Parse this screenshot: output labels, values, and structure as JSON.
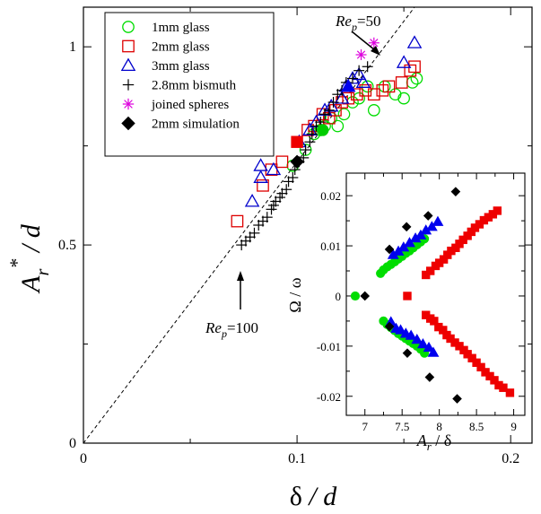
{
  "chart_data": [
    {
      "type": "scatter",
      "xlabel": "δ / d",
      "ylabel": "A_r* / d",
      "xlim": [
        0,
        0.21
      ],
      "ylim": [
        0,
        1.1
      ],
      "x_ticks": [
        0,
        0.1,
        0.2
      ],
      "x_tick_labels": [
        "0",
        "0.1",
        "0.2"
      ],
      "y_ticks": [
        0,
        0.5,
        1
      ],
      "y_tick_labels": [
        "0",
        "0.5",
        "1"
      ],
      "grid": false,
      "legend_position": "top-left",
      "legend": [
        "1mm glass",
        "2mm glass",
        "3mm glass",
        "2.8mm bismuth",
        "joined spheres",
        "2mm simulation"
      ],
      "reference_line": {
        "style": "dashed",
        "x": [
          0,
          0.155
        ],
        "y": [
          0,
          1.1
        ]
      },
      "annotations": [
        {
          "text_main": "Re",
          "text_sub": "p",
          "text_rest": "=50",
          "point": [
            0.131,
            0.98
          ]
        },
        {
          "text_main": "Re",
          "text_sub": "p",
          "text_rest": "=100",
          "point": [
            0.072,
            0.5
          ]
        }
      ],
      "series": [
        {
          "name": "1mm glass",
          "marker": "circle-open",
          "color": "#00dd00",
          "points": [
            [
              0.098,
              0.7
            ],
            [
              0.104,
              0.74
            ],
            [
              0.108,
              0.78
            ],
            [
              0.111,
              0.79
            ],
            [
              0.113,
              0.8
            ],
            [
              0.116,
              0.82
            ],
            [
              0.119,
              0.8
            ],
            [
              0.122,
              0.83
            ],
            [
              0.126,
              0.86
            ],
            [
              0.129,
              0.87
            ],
            [
              0.133,
              0.9
            ],
            [
              0.136,
              0.84
            ],
            [
              0.141,
              0.9
            ],
            [
              0.146,
              0.88
            ],
            [
              0.15,
              0.87
            ],
            [
              0.154,
              0.91
            ],
            [
              0.156,
              0.92
            ]
          ]
        },
        {
          "name": "2mm glass",
          "marker": "square-open",
          "color": "#dd0000",
          "points": [
            [
              0.072,
              0.56
            ],
            [
              0.084,
              0.65
            ],
            [
              0.088,
              0.69
            ],
            [
              0.093,
              0.71
            ],
            [
              0.105,
              0.79
            ],
            [
              0.108,
              0.8
            ],
            [
              0.112,
              0.83
            ],
            [
              0.115,
              0.82
            ],
            [
              0.118,
              0.84
            ],
            [
              0.121,
              0.86
            ],
            [
              0.124,
              0.87
            ],
            [
              0.128,
              0.88
            ],
            [
              0.132,
              0.89
            ],
            [
              0.136,
              0.88
            ],
            [
              0.14,
              0.89
            ],
            [
              0.143,
              0.9
            ],
            [
              0.149,
              0.91
            ],
            [
              0.153,
              0.94
            ],
            [
              0.155,
              0.95
            ]
          ]
        },
        {
          "name": "3mm glass",
          "marker": "triangle-open",
          "color": "#0000cc",
          "points": [
            [
              0.079,
              0.61
            ],
            [
              0.083,
              0.67
            ],
            [
              0.083,
              0.7
            ],
            [
              0.089,
              0.69
            ],
            [
              0.101,
              0.76
            ],
            [
              0.106,
              0.79
            ],
            [
              0.109,
              0.81
            ],
            [
              0.113,
              0.84
            ],
            [
              0.116,
              0.85
            ],
            [
              0.121,
              0.87
            ],
            [
              0.123,
              0.9
            ],
            [
              0.126,
              0.92
            ],
            [
              0.129,
              0.93
            ],
            [
              0.131,
              0.91
            ],
            [
              0.15,
              0.96
            ],
            [
              0.155,
              1.01
            ]
          ]
        },
        {
          "name": "2.8mm bismuth",
          "marker": "plus",
          "color": "#000000",
          "points": [
            [
              0.074,
              0.5
            ],
            [
              0.076,
              0.51
            ],
            [
              0.078,
              0.52
            ],
            [
              0.08,
              0.53
            ],
            [
              0.082,
              0.55
            ],
            [
              0.084,
              0.56
            ],
            [
              0.086,
              0.57
            ],
            [
              0.088,
              0.59
            ],
            [
              0.089,
              0.6
            ],
            [
              0.09,
              0.61
            ],
            [
              0.092,
              0.62
            ],
            [
              0.093,
              0.63
            ],
            [
              0.095,
              0.64
            ],
            [
              0.096,
              0.66
            ],
            [
              0.098,
              0.67
            ],
            [
              0.099,
              0.69
            ],
            [
              0.101,
              0.71
            ],
            [
              0.103,
              0.72
            ],
            [
              0.104,
              0.74
            ],
            [
              0.106,
              0.76
            ],
            [
              0.107,
              0.78
            ],
            [
              0.109,
              0.8
            ],
            [
              0.111,
              0.81
            ],
            [
              0.113,
              0.83
            ],
            [
              0.115,
              0.84
            ],
            [
              0.117,
              0.86
            ],
            [
              0.119,
              0.88
            ],
            [
              0.121,
              0.89
            ],
            [
              0.123,
              0.91
            ],
            [
              0.126,
              0.92
            ],
            [
              0.129,
              0.94
            ],
            [
              0.133,
              0.95
            ]
          ]
        },
        {
          "name": "joined spheres",
          "marker": "asterisk",
          "color": "#dd00dd",
          "points": [
            [
              0.13,
              0.98
            ],
            [
              0.136,
              1.01
            ]
          ]
        },
        {
          "name": "2mm simulation",
          "marker": "diamond-filled",
          "color": "#000000",
          "points": [
            [
              0.1,
              0.71
            ]
          ]
        },
        {
          "name": "",
          "marker": "square-filled",
          "color": "#ee0000",
          "points": [
            [
              0.1,
              0.76
            ]
          ]
        },
        {
          "name": "",
          "marker": "circle-filled",
          "color": "#00cc00",
          "points": [
            [
              0.112,
              0.79
            ]
          ]
        },
        {
          "name": "",
          "marker": "triangle-filled",
          "color": "#0000ee",
          "points": [
            [
              0.124,
              0.9
            ]
          ]
        }
      ]
    },
    {
      "type": "scatter",
      "inset": true,
      "xlabel": "A_r / δ",
      "ylabel": "Ω / ω",
      "xlim": [
        6.75,
        9.15
      ],
      "ylim": [
        -0.0238,
        0.0245
      ],
      "x_ticks": [
        7,
        7.5,
        8,
        8.5,
        9
      ],
      "x_tick_labels": [
        "7",
        "7.5",
        "8",
        "8.5",
        "9"
      ],
      "y_ticks": [
        0.02,
        0.01,
        0,
        -0.01,
        -0.02
      ],
      "y_tick_labels": [
        "0.02",
        "0.01",
        "0",
        "-0.01",
        "-0.02"
      ],
      "grid": false,
      "series": [
        {
          "marker": "circle-filled",
          "color": "#00dd00",
          "points": [
            [
              6.87,
              0.0
            ],
            [
              7.21,
              0.0045
            ],
            [
              7.25,
              0.0052
            ],
            [
              7.3,
              0.0058
            ],
            [
              7.35,
              0.0063
            ],
            [
              7.4,
              0.0068
            ],
            [
              7.45,
              0.0074
            ],
            [
              7.5,
              0.0079
            ],
            [
              7.55,
              0.0085
            ],
            [
              7.6,
              0.009
            ],
            [
              7.65,
              0.0096
            ],
            [
              7.7,
              0.0102
            ],
            [
              7.75,
              0.0108
            ],
            [
              7.8,
              0.0114
            ],
            [
              7.25,
              -0.005
            ],
            [
              7.3,
              -0.0057
            ],
            [
              7.35,
              -0.0063
            ],
            [
              7.4,
              -0.0069
            ],
            [
              7.45,
              -0.0075
            ],
            [
              7.5,
              -0.008
            ],
            [
              7.55,
              -0.0085
            ],
            [
              7.6,
              -0.009
            ],
            [
              7.65,
              -0.0095
            ],
            [
              7.7,
              -0.01
            ],
            [
              7.75,
              -0.0106
            ],
            [
              7.8,
              -0.0114
            ]
          ]
        },
        {
          "marker": "square-filled",
          "color": "#ee0000",
          "points": [
            [
              7.57,
              0.0
            ],
            [
              7.82,
              0.0042
            ],
            [
              7.88,
              0.005
            ],
            [
              7.95,
              0.006
            ],
            [
              8.0,
              0.0066
            ],
            [
              8.06,
              0.0073
            ],
            [
              8.11,
              0.0082
            ],
            [
              8.16,
              0.009
            ],
            [
              8.22,
              0.0096
            ],
            [
              8.27,
              0.0104
            ],
            [
              8.32,
              0.0112
            ],
            [
              8.38,
              0.012
            ],
            [
              8.43,
              0.0128
            ],
            [
              8.48,
              0.0136
            ],
            [
              8.54,
              0.0143
            ],
            [
              8.6,
              0.0151
            ],
            [
              8.66,
              0.0157
            ],
            [
              8.72,
              0.0163
            ],
            [
              8.78,
              0.017
            ],
            [
              7.82,
              -0.0038
            ],
            [
              7.88,
              -0.0045
            ],
            [
              7.93,
              -0.005
            ],
            [
              7.99,
              -0.0062
            ],
            [
              8.05,
              -0.0068
            ],
            [
              8.1,
              -0.0078
            ],
            [
              8.15,
              -0.0085
            ],
            [
              8.21,
              -0.0093
            ],
            [
              8.27,
              -0.01
            ],
            [
              8.33,
              -0.0108
            ],
            [
              8.38,
              -0.0116
            ],
            [
              8.44,
              -0.0124
            ],
            [
              8.5,
              -0.0133
            ],
            [
              8.56,
              -0.0142
            ],
            [
              8.62,
              -0.0152
            ],
            [
              8.68,
              -0.016
            ],
            [
              8.74,
              -0.0168
            ],
            [
              8.8,
              -0.0178
            ],
            [
              8.86,
              -0.0183
            ],
            [
              8.95,
              -0.0193
            ]
          ]
        },
        {
          "marker": "triangle-filled",
          "color": "#0000ee",
          "points": [
            [
              7.38,
              0.0082
            ],
            [
              7.45,
              0.0089
            ],
            [
              7.52,
              0.0097
            ],
            [
              7.6,
              0.0106
            ],
            [
              7.68,
              0.0115
            ],
            [
              7.75,
              0.0121
            ],
            [
              7.82,
              0.0131
            ],
            [
              7.9,
              0.0138
            ],
            [
              7.98,
              0.0148
            ],
            [
              7.35,
              -0.0052
            ],
            [
              7.42,
              -0.0065
            ],
            [
              7.48,
              -0.0068
            ],
            [
              7.55,
              -0.0075
            ],
            [
              7.62,
              -0.0079
            ],
            [
              7.7,
              -0.0087
            ],
            [
              7.78,
              -0.0096
            ],
            [
              7.86,
              -0.0103
            ],
            [
              7.92,
              -0.0113
            ]
          ]
        },
        {
          "marker": "diamond-filled",
          "color": "#000000",
          "points": [
            [
              7.0,
              0.0
            ],
            [
              7.33,
              0.0093
            ],
            [
              7.56,
              0.0138
            ],
            [
              7.85,
              0.016
            ],
            [
              8.22,
              0.0208
            ],
            [
              7.33,
              -0.0061
            ],
            [
              7.57,
              -0.0114
            ],
            [
              7.87,
              -0.0162
            ],
            [
              8.24,
              -0.0205
            ]
          ]
        }
      ]
    }
  ]
}
